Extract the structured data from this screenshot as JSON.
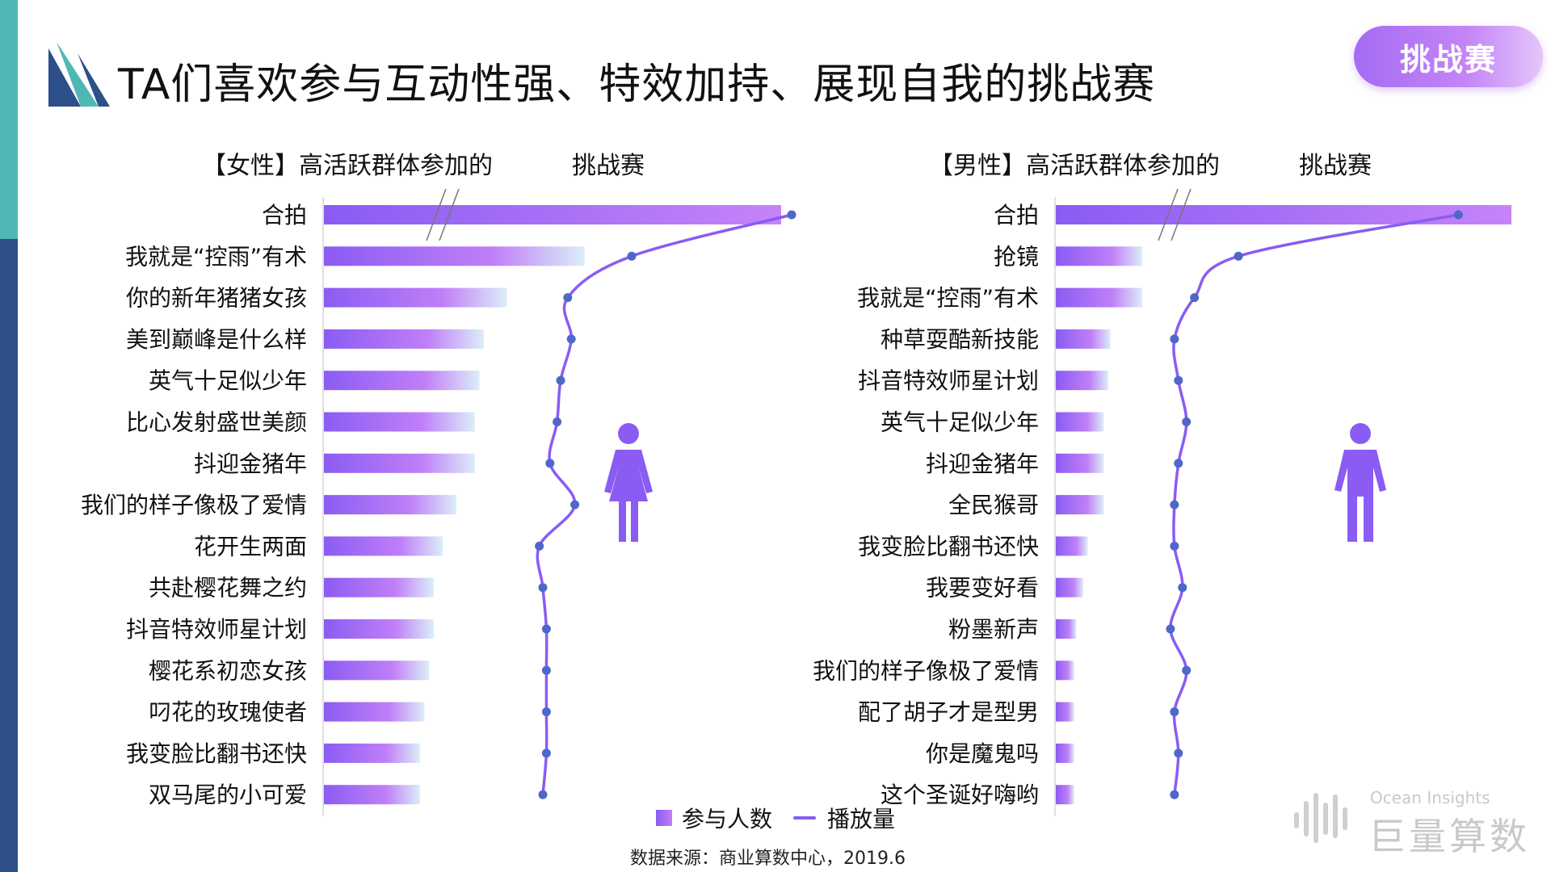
{
  "page": {
    "title": "TA们喜欢参与互动性强、特效加持、展现自我的挑战赛",
    "badge": "挑战赛",
    "source": "数据来源：商业算数中心，2019.6",
    "brand_en": "Ocean Insights",
    "brand_cn": "巨量算数",
    "colors": {
      "bar_start": "#8a5cf3",
      "bar_end": "#dbeef8",
      "line": "#8a5cf3",
      "dot": "#4f67c8",
      "accent": "#a46cf3"
    },
    "icons": [
      "female-person-icon",
      "male-person-icon",
      "ocean-insights-logo-icon"
    ]
  },
  "chart_data": [
    {
      "type": "bar",
      "subtitle_left": "【女性】高活跃群体参加的",
      "subtitle_right": "挑战赛",
      "axis_break_on_first_bar": true,
      "categories": [
        "合拍",
        "我就是“控雨”有术",
        "你的新年猪猪女孩",
        "美到巅峰是什么样",
        "英气十足似少年",
        "比心发射盛世美颜",
        "抖迎金猪年",
        "我们的样子像极了爱情",
        "花开生两面",
        "共赴樱花舞之约",
        "抖音特效师星计划",
        "樱花系初恋女孩",
        "叼花的玫瑰使者",
        "我变脸比翻书还快",
        "双马尾的小可爱"
      ],
      "series": [
        {
          "name": "参与人数",
          "type": "bar",
          "values": [
            100,
            57,
            40,
            35,
            34,
            33,
            33,
            29,
            26,
            24,
            24,
            23,
            22,
            21,
            21
          ]
        },
        {
          "name": "播放量",
          "type": "line",
          "values": [
            100,
            55,
            37,
            38,
            35,
            34,
            32,
            39,
            29,
            30,
            31,
            31,
            31,
            31,
            30
          ]
        }
      ]
    },
    {
      "type": "bar",
      "subtitle_left": "【男性】高活跃群体参加的",
      "subtitle_right": "挑战赛",
      "axis_break_on_first_bar": true,
      "categories": [
        "合拍",
        "抢镜",
        "我就是“控雨”有术",
        "种草耍酷新技能",
        "抖音特效师星计划",
        "英气十足似少年",
        "抖迎金猪年",
        "全民猴哥",
        "我变脸比翻书还快",
        "我要变好看",
        "粉墨新声",
        "我们的样子像极了爱情",
        "配了胡子才是型男",
        "你是魔鬼吗",
        "这个圣诞好嗨哟"
      ],
      "series": [
        {
          "name": "参与人数",
          "type": "bar",
          "values": [
            100,
            19,
            19,
            12,
            11.5,
            10.5,
            10.5,
            10.5,
            7,
            6,
            4.5,
            4,
            4,
            4,
            4
          ]
        },
        {
          "name": "播放量",
          "type": "line",
          "values": [
            94,
            39,
            28,
            23,
            24,
            26,
            24,
            23,
            23,
            25,
            22,
            26,
            23,
            24,
            23
          ]
        }
      ]
    }
  ],
  "legend": {
    "bar": "参与人数",
    "line": "播放量"
  }
}
